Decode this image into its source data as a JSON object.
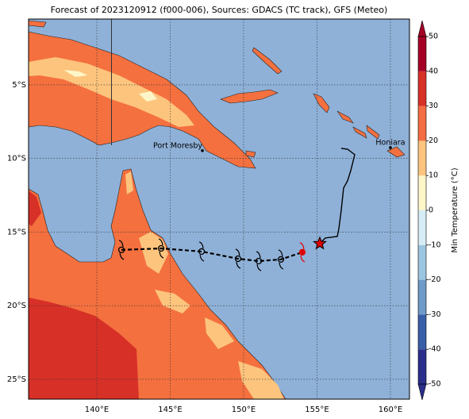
{
  "title": "Forecast of 2023120912 (f000-006), Sources: GDACS (TC track), GFS (Meteo)",
  "map": {
    "xlim": [
      135.35,
      161.3
    ],
    "ylim": [
      -26.35,
      -0.53
    ],
    "xticks": [
      {
        "value": 140,
        "label": "140°E"
      },
      {
        "value": 145,
        "label": "145°E"
      },
      {
        "value": 150,
        "label": "150°E"
      },
      {
        "value": 155,
        "label": "155°E"
      },
      {
        "value": 160,
        "label": "160°E"
      }
    ],
    "yticks": [
      {
        "value": -5,
        "label": "5°S"
      },
      {
        "value": -10,
        "label": "10°S"
      },
      {
        "value": -15,
        "label": "15°S"
      },
      {
        "value": -20,
        "label": "20°S"
      },
      {
        "value": -25,
        "label": "25°S"
      }
    ],
    "grid": true,
    "places": [
      {
        "name": "Port Moresby",
        "lon": 147.19,
        "lat": -9.47
      },
      {
        "name": "Honiara",
        "lon": 160.0,
        "lat": -9.26
      }
    ],
    "observed_track": {
      "color": "#000000",
      "lon": [
        155.19,
        155.57,
        156.38,
        156.49,
        156.65,
        156.81,
        157.08,
        157.3,
        157.57,
        157.08,
        156.65
      ],
      "lat": [
        -15.78,
        -15.4,
        -15.3,
        -14.76,
        -13.52,
        -12.01,
        -11.52,
        -10.82,
        -9.74,
        -9.37,
        -9.31
      ]
    },
    "forecast_track": {
      "color": "#000000",
      "lon": [
        141.68,
        144.38,
        147.14,
        149.62,
        151.03,
        152.54,
        154.0
      ],
      "lat": [
        -16.21,
        -16.11,
        -16.32,
        -16.81,
        -16.97,
        -16.86,
        -16.37
      ],
      "marker_colors": [
        "#000000",
        "#000000",
        "#000000",
        "#000000",
        "#000000",
        "#000000",
        "#e00000"
      ]
    },
    "current_position": {
      "lon": 155.19,
      "lat": -15.78,
      "color": "#e00000"
    }
  },
  "colorbar": {
    "label": "Min Temperature (°C)",
    "ticks": [
      -50,
      -40,
      -30,
      -20,
      -10,
      0,
      10,
      20,
      30,
      40,
      50
    ],
    "colors": [
      "#2b2f8c",
      "#3a5fa8",
      "#6e9bc9",
      "#9cc5df",
      "#d6edf5",
      "#fdf6c8",
      "#fdc47d",
      "#f46d43",
      "#d73027",
      "#a50026"
    ]
  }
}
